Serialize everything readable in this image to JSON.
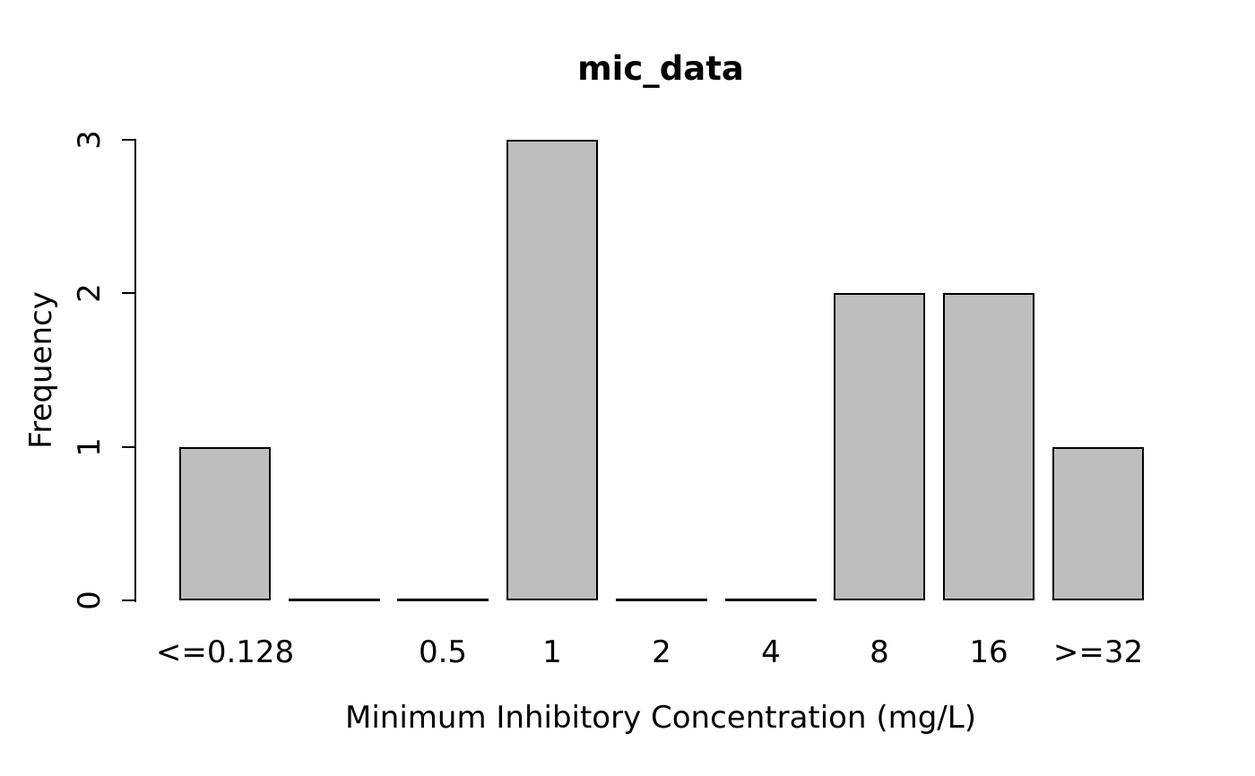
{
  "chart_data": {
    "type": "bar",
    "title": "mic_data",
    "categories": [
      "<=0.128",
      "",
      "0.5",
      "1",
      "2",
      "4",
      "8",
      "16",
      ">=32"
    ],
    "values": [
      1,
      0,
      0,
      3,
      0,
      0,
      2,
      2,
      1
    ],
    "xlabel": "Minimum Inhibitory Concentration (mg/L)",
    "ylabel": "Frequency",
    "yticks": [
      0,
      1,
      2,
      3
    ],
    "ylim": [
      0,
      3
    ],
    "bar_fill_color": "#BEBEBE",
    "bar_border_color": "#000000",
    "axis_color": "#000000",
    "text_color": "#000000",
    "background_color": "#FFFFFF",
    "grid": false,
    "legend_position": "none"
  }
}
